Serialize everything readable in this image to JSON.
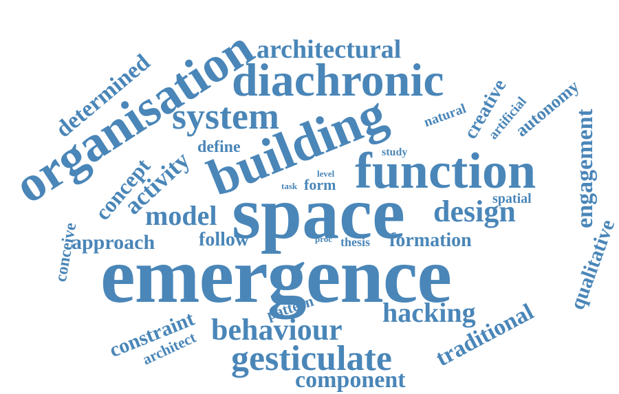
{
  "word_color": "#4a86b8",
  "background": "#ffffff",
  "words": {
    "emergence": "emergence",
    "space": "space",
    "function": "function",
    "building": "building",
    "organisation": "organisation",
    "diachronic": "diachronic",
    "system": "system",
    "architectural": "architectural",
    "gesticulate": "gesticulate",
    "behaviour": "behaviour",
    "hacking": "hacking",
    "design": "design",
    "model": "model",
    "formation": "formation",
    "engagement": "engagement",
    "component": "component",
    "traditional": "traditional",
    "approach": "approach",
    "follow": "follow",
    "activity": "activity",
    "concept": "concept",
    "determined": "determined",
    "autonomy": "autonomy",
    "creative": "creative",
    "qualitative": "qualitative",
    "constraint": "constraint",
    "architect": "architect",
    "conceive": "conceive",
    "define": "define",
    "form": "form",
    "natural": "natural",
    "artificial": "artificial",
    "spatial": "spatial",
    "pattern": "pattern",
    "thesis": "thesis",
    "study": "study",
    "level": "level",
    "task": "task",
    "proc": "proc"
  }
}
